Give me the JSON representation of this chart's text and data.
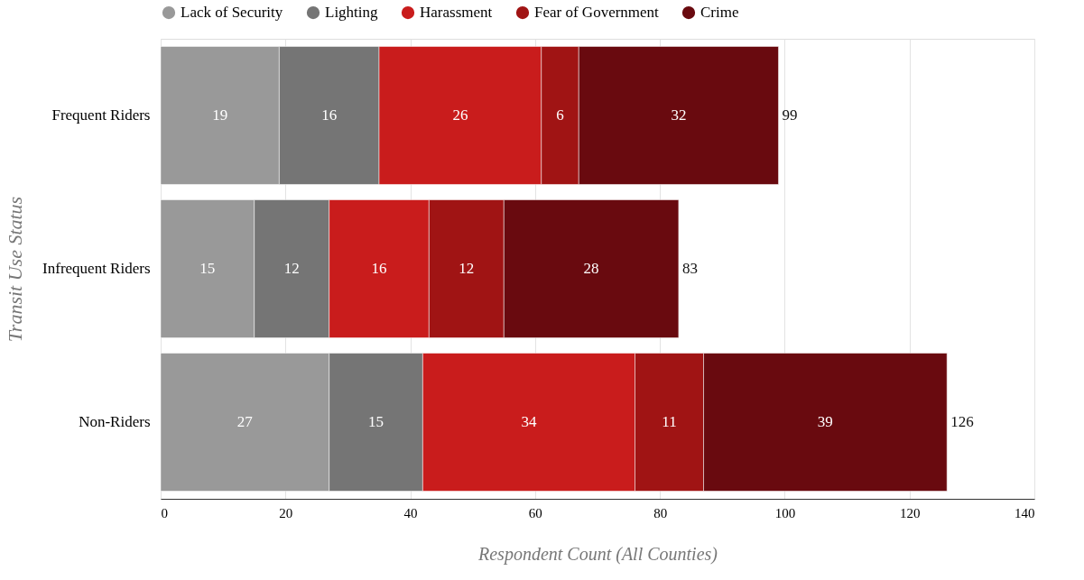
{
  "chart_data": {
    "type": "bar",
    "orientation": "horizontal",
    "stacked": true,
    "xlabel": "Respondent Count (All Counties)",
    "ylabel": "Transit Use Status",
    "categories": [
      "Frequent Riders",
      "Infrequent Riders",
      "Non-Riders"
    ],
    "series": [
      {
        "name": "Lack of Security",
        "color": "#999999",
        "values": [
          19,
          15,
          27
        ]
      },
      {
        "name": "Lighting",
        "color": "#757575",
        "values": [
          16,
          12,
          15
        ]
      },
      {
        "name": "Harassment",
        "color": "#c91c1c",
        "values": [
          26,
          16,
          34
        ]
      },
      {
        "name": "Fear of Government",
        "color": "#a01414",
        "values": [
          6,
          12,
          11
        ]
      },
      {
        "name": "Crime",
        "color": "#690a0f",
        "values": [
          32,
          28,
          39
        ]
      }
    ],
    "totals": [
      "99",
      "83",
      "126"
    ],
    "xlim": [
      0,
      140
    ],
    "xticks": [
      0,
      20,
      40,
      60,
      80,
      100,
      120,
      140
    ],
    "grid": "x",
    "legend": "top",
    "data_labels": true
  }
}
